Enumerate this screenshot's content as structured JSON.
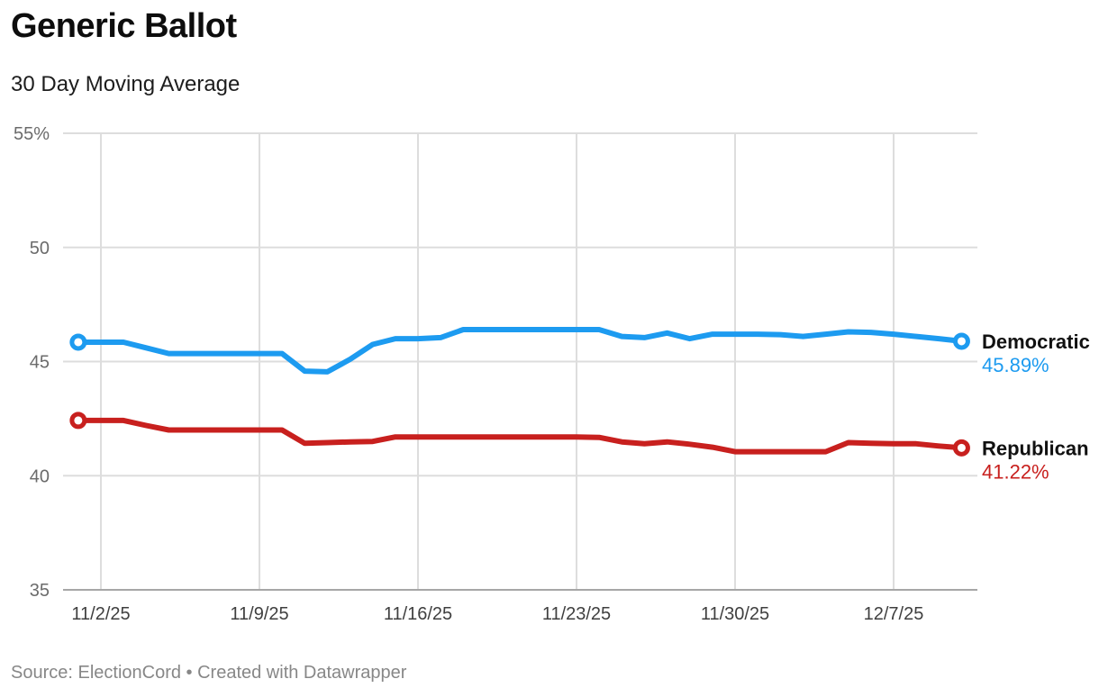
{
  "header": {
    "title": "Generic Ballot",
    "subtitle": "30 Day Moving Average"
  },
  "footer": {
    "text": "Source: ElectionCord • Created with Datawrapper"
  },
  "colors": {
    "democratic": "#1d9bf0",
    "republican": "#c8201e",
    "grid": "#dddddd",
    "axis": "#a6a6a6",
    "y_tick_label": "#6b6b6b",
    "x_tick_label": "#3f3f3f",
    "series_name": "#111111",
    "background": "#ffffff"
  },
  "chart_data": {
    "type": "line",
    "title": "Generic Ballot",
    "subtitle": "30 Day Moving Average",
    "unit": "%",
    "grid": true,
    "legend_position": "right-of-line-end",
    "ylim": [
      35,
      55
    ],
    "yticks": [
      {
        "value": 55,
        "label": "55%"
      },
      {
        "value": 50,
        "label": "50"
      },
      {
        "value": 45,
        "label": "45"
      },
      {
        "value": 40,
        "label": "40"
      },
      {
        "value": 35,
        "label": "35"
      }
    ],
    "xticks": [
      "11/2/25",
      "11/9/25",
      "11/16/25",
      "11/23/25",
      "11/30/25",
      "12/7/25"
    ],
    "dates": [
      "11/1/25",
      "11/2/25",
      "11/3/25",
      "11/4/25",
      "11/5/25",
      "11/6/25",
      "11/7/25",
      "11/8/25",
      "11/9/25",
      "11/10/25",
      "11/11/25",
      "11/12/25",
      "11/13/25",
      "11/14/25",
      "11/15/25",
      "11/16/25",
      "11/17/25",
      "11/18/25",
      "11/19/25",
      "11/20/25",
      "11/21/25",
      "11/22/25",
      "11/23/25",
      "11/24/25",
      "11/25/25",
      "11/26/25",
      "11/27/25",
      "11/28/25",
      "11/29/25",
      "11/30/25",
      "12/1/25",
      "12/2/25",
      "12/3/25",
      "12/4/25",
      "12/5/25",
      "12/6/25",
      "12/7/25",
      "12/8/25",
      "12/9/25",
      "12/10/25"
    ],
    "series": [
      {
        "name": "Democratic",
        "color_key": "democratic",
        "end_label": "45.89%",
        "values": [
          45.85,
          45.85,
          45.85,
          45.6,
          45.35,
          45.35,
          45.35,
          45.35,
          45.35,
          45.35,
          44.58,
          44.55,
          45.1,
          45.75,
          46.0,
          46.0,
          46.05,
          46.4,
          46.4,
          46.4,
          46.4,
          46.4,
          46.4,
          46.4,
          46.1,
          46.05,
          46.25,
          46.0,
          46.2,
          46.2,
          46.2,
          46.18,
          46.1,
          46.2,
          46.3,
          46.28,
          46.2,
          46.1,
          46.0,
          45.89
        ]
      },
      {
        "name": "Republican",
        "color_key": "republican",
        "end_label": "41.22%",
        "values": [
          42.42,
          42.42,
          42.42,
          42.2,
          42.0,
          42.0,
          42.0,
          42.0,
          42.0,
          42.0,
          41.42,
          41.45,
          41.48,
          41.5,
          41.7,
          41.7,
          41.7,
          41.7,
          41.7,
          41.7,
          41.7,
          41.7,
          41.7,
          41.68,
          41.48,
          41.4,
          41.48,
          41.38,
          41.25,
          41.05,
          41.05,
          41.05,
          41.05,
          41.05,
          41.45,
          41.42,
          41.4,
          41.4,
          41.3,
          41.22
        ]
      }
    ]
  }
}
